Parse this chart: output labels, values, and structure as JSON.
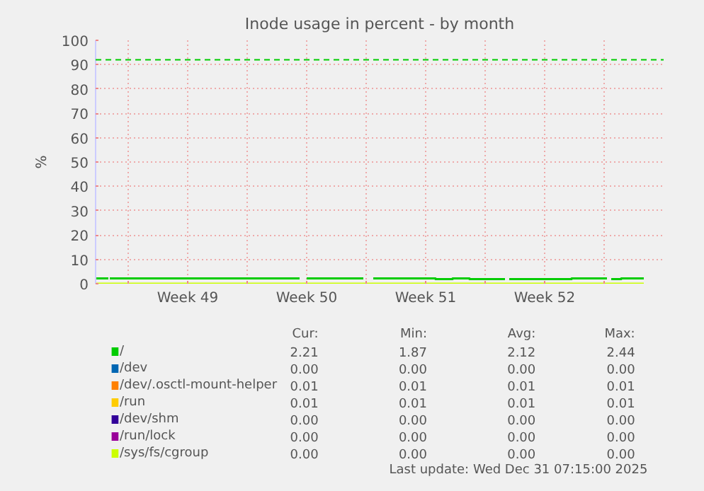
{
  "chart_data": {
    "type": "step",
    "title": "Inode usage in percent - by month",
    "ylabel": "%",
    "xlim": [
      "2025-11-29T02:00",
      "2026-01-01T12:00"
    ],
    "xticks": [
      {
        "value": "2025-12-01",
        "label": null
      },
      {
        "value": "2025-12-04T12:00",
        "label": "Week 49"
      },
      {
        "value": "2025-12-08",
        "label": null
      },
      {
        "value": "2025-12-11T12:00",
        "label": "Week 50"
      },
      {
        "value": "2025-12-15",
        "label": null
      },
      {
        "value": "2025-12-18T12:00",
        "label": "Week 51"
      },
      {
        "value": "2025-12-22",
        "label": null
      },
      {
        "value": "2025-12-25T12:00",
        "label": "Week 52"
      },
      {
        "value": "2025-12-29",
        "label": null
      }
    ],
    "ylim": [
      0,
      100
    ],
    "yticks": [
      0,
      10,
      20,
      30,
      40,
      50,
      60,
      70,
      80,
      90,
      100
    ],
    "grid": true,
    "legend": "bottom",
    "series": [
      {
        "name": "/",
        "color": "#00cc00",
        "x": [
          "2025-11-29T02:00",
          "2025-11-29T20:00",
          "2025-11-29T22:00",
          "2025-12-11T02:00",
          "2025-12-11T12:00",
          "2025-12-14T20:00",
          "2025-12-15T10:00",
          "2025-12-19T02:00",
          "2025-12-20T02:00",
          "2025-12-21T02:00",
          "2025-12-23T04:00",
          "2025-12-23T10:00",
          "2025-12-27T02:00",
          "2025-12-29T04:00",
          "2025-12-29T10:00",
          "2025-12-30T00:00",
          "2025-12-31T08:00"
        ],
        "values": [
          2.2,
          null,
          2.2,
          null,
          2.2,
          null,
          2.2,
          1.9,
          2.2,
          1.9,
          null,
          1.9,
          2.2,
          null,
          1.9,
          2.2,
          2.2
        ]
      },
      {
        "name": "/dev",
        "color": "#0066b3"
      },
      {
        "name": "/dev/.osctl-mount-helper",
        "color": "#ff8000"
      },
      {
        "name": "/run",
        "color": "#ffcc00"
      },
      {
        "name": "/dev/shm",
        "color": "#330099"
      },
      {
        "name": "/run/lock",
        "color": "#990099"
      },
      {
        "name": "/sys/fs/cgroup",
        "color": "#ccff00",
        "x": [
          "2025-11-29T02:00",
          "2025-12-31T08:00"
        ],
        "values": [
          0,
          0
        ]
      }
    ],
    "ref_lines": [
      {
        "axis": "y",
        "value": 92,
        "color": "#00cc00",
        "line_style": "dashed"
      }
    ],
    "annotations": [
      "Cur:",
      "Min:",
      "Avg:",
      "Max:",
      "2.21",
      "1.87",
      "2.12",
      "2.44",
      "0.00",
      "0.00",
      "0.00",
      "0.00",
      "0.01",
      "0.01",
      "0.01",
      "0.01",
      "0.01",
      "0.01",
      "0.01",
      "0.01",
      "0.00",
      "0.00",
      "0.00",
      "0.00",
      "0.00",
      "0.00",
      "0.00",
      "0.00",
      "0.00",
      "0.00",
      "0.00",
      "0.00",
      "Last update: Wed Dec 31 07:15:00 2025"
    ]
  }
}
